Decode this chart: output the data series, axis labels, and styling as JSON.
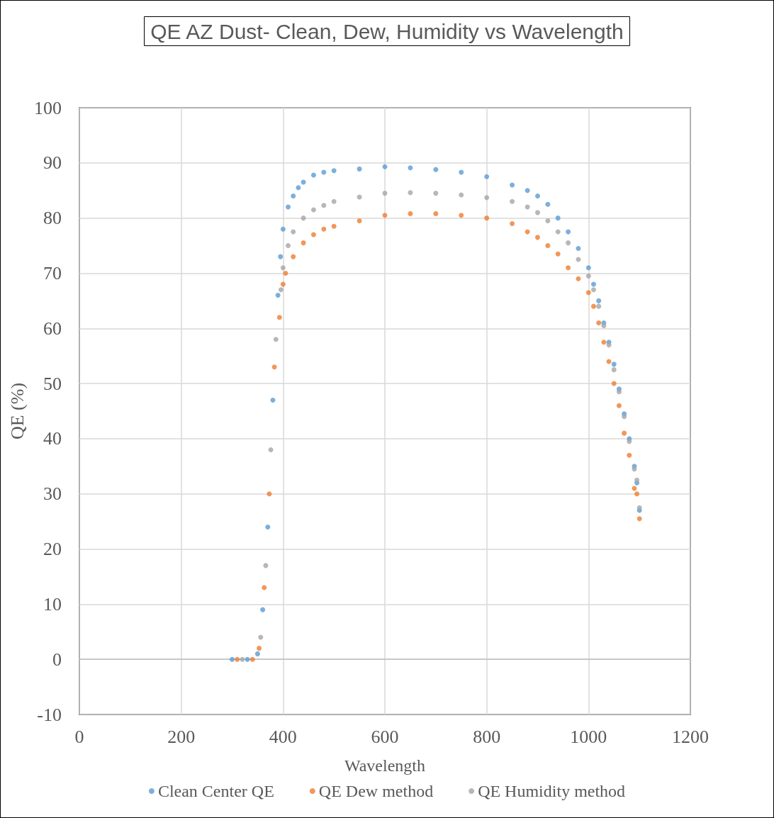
{
  "chart_data": {
    "type": "scatter",
    "title": "QE AZ Dust- Clean, Dew, Humidity vs Wavelength",
    "xlabel": "Wavelength",
    "ylabel": "QE (%)",
    "xlim": [
      0,
      1200
    ],
    "xticks": [
      0,
      200,
      400,
      600,
      800,
      1000,
      1200
    ],
    "ylim": [
      -10,
      100
    ],
    "yticks": [
      -10,
      0,
      10,
      20,
      30,
      40,
      50,
      60,
      70,
      80,
      90,
      100
    ],
    "grid": true,
    "legend": "bottom",
    "marker": "circle",
    "series": [
      {
        "name": "Clean Center QE",
        "color": "#5b9bd5",
        "x": [
          300,
          330,
          350,
          360,
          370,
          380,
          390,
          395,
          400,
          410,
          420,
          430,
          440,
          460,
          480,
          500,
          550,
          600,
          650,
          700,
          750,
          800,
          850,
          880,
          900,
          920,
          940,
          960,
          980,
          1000,
          1010,
          1020,
          1030,
          1040,
          1050,
          1060,
          1070,
          1080,
          1090,
          1095,
          1100
        ],
        "values": [
          0,
          0,
          1,
          9,
          24,
          47,
          66,
          73,
          78,
          82,
          84,
          85.5,
          86.5,
          87.8,
          88.3,
          88.6,
          88.9,
          89.3,
          89.1,
          88.8,
          88.3,
          87.5,
          86,
          85,
          84,
          82.5,
          80,
          77.5,
          74.5,
          71,
          68,
          65,
          61,
          57.5,
          53.5,
          49,
          44.5,
          40,
          35,
          32,
          27
        ]
      },
      {
        "name": "QE Dew method",
        "color": "#ed7d31",
        "x": [
          310,
          340,
          353,
          363,
          373,
          383,
          393,
          400,
          405,
          420,
          440,
          460,
          480,
          500,
          550,
          600,
          650,
          700,
          750,
          800,
          850,
          880,
          900,
          920,
          940,
          960,
          980,
          1000,
          1010,
          1020,
          1030,
          1040,
          1050,
          1060,
          1070,
          1080,
          1090,
          1095,
          1100
        ],
        "values": [
          0,
          0,
          2,
          13,
          30,
          53,
          62,
          68,
          70,
          73,
          75.5,
          77,
          78,
          78.5,
          79.5,
          80.5,
          80.8,
          80.8,
          80.5,
          80,
          79,
          77.5,
          76.5,
          75,
          73.5,
          71,
          69,
          66.5,
          64,
          61,
          57.5,
          54,
          50,
          46,
          41,
          37,
          31,
          30,
          25.5
        ]
      },
      {
        "name": "QE Humidity method",
        "color": "#a5a5a5",
        "x": [
          320,
          356,
          366,
          376,
          386,
          396,
          400,
          410,
          420,
          440,
          460,
          480,
          500,
          550,
          600,
          650,
          700,
          750,
          800,
          850,
          880,
          900,
          920,
          940,
          960,
          980,
          1000,
          1010,
          1020,
          1030,
          1040,
          1050,
          1060,
          1070,
          1080,
          1090,
          1095,
          1100
        ],
        "values": [
          0,
          4,
          17,
          38,
          58,
          67,
          71,
          75,
          77.5,
          80,
          81.5,
          82.3,
          83,
          83.8,
          84.5,
          84.6,
          84.5,
          84.2,
          83.7,
          83,
          82,
          81,
          79.5,
          77.5,
          75.5,
          72.5,
          69.5,
          67,
          64,
          60.5,
          57,
          52.5,
          48.5,
          44,
          39.5,
          34.5,
          32.5,
          27.5
        ]
      }
    ]
  }
}
